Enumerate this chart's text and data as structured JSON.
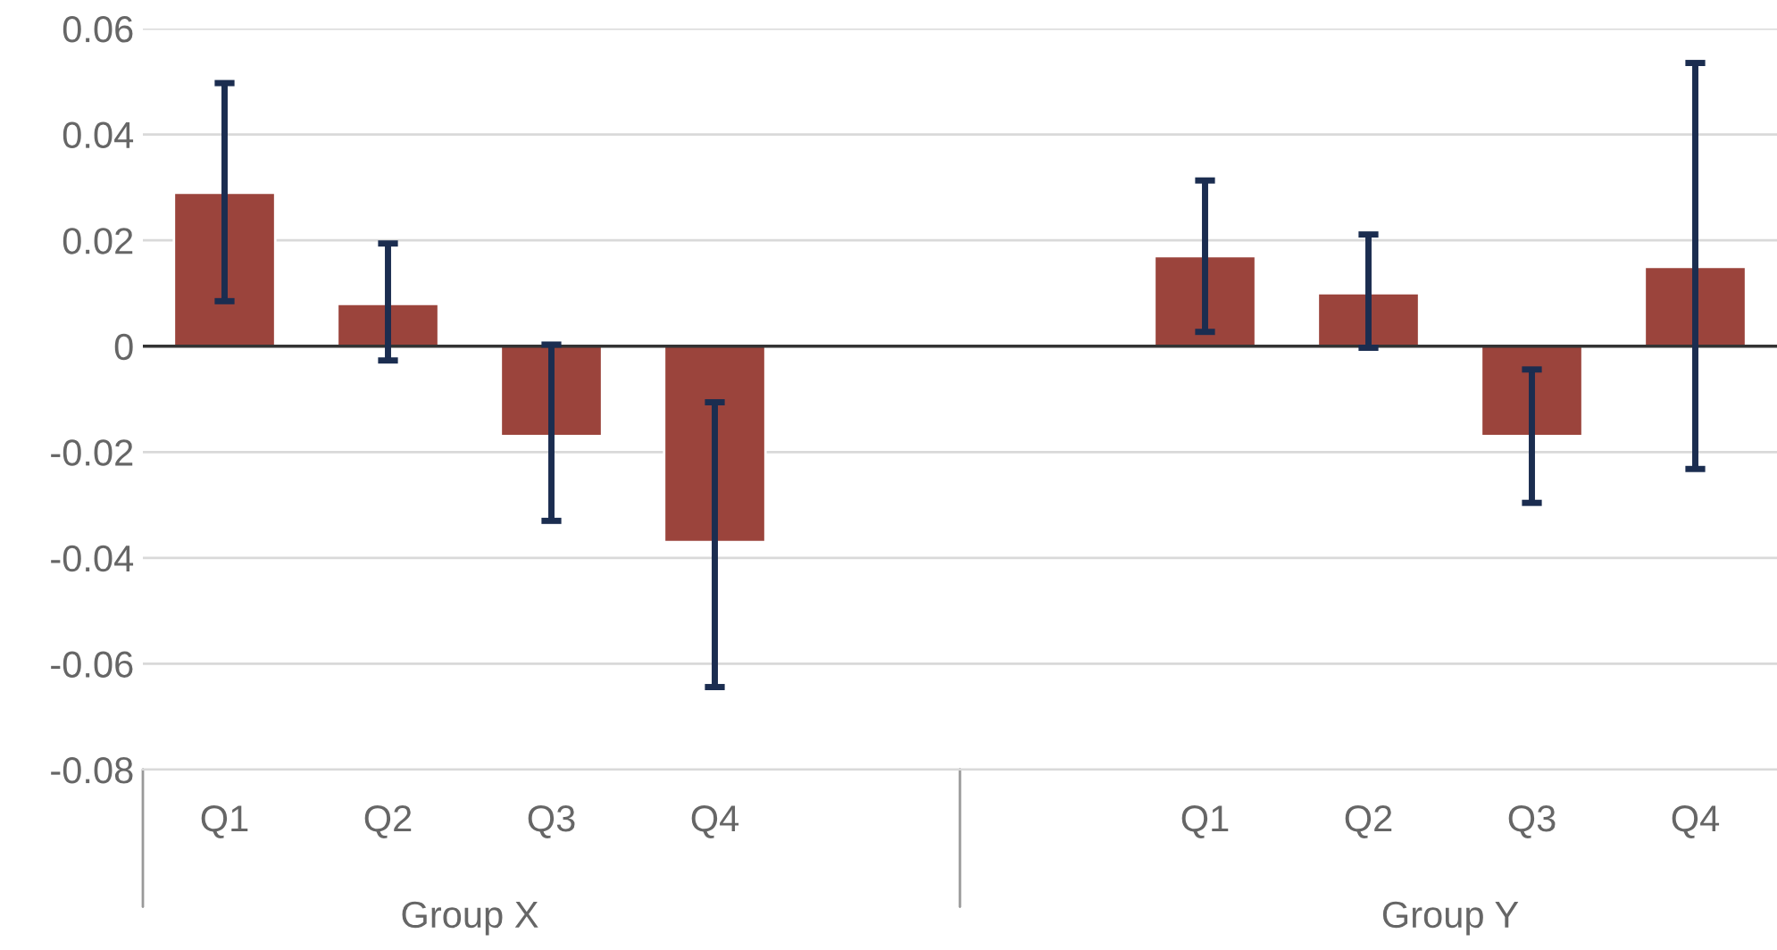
{
  "chart_data": {
    "type": "bar",
    "categories": [
      "Q1",
      "Q2",
      "Q3",
      "Q4",
      null,
      null,
      "Q1",
      "Q2",
      "Q3",
      "Q4"
    ],
    "values": [
      0.029,
      0.008,
      -0.017,
      -0.037,
      null,
      null,
      0.017,
      0.01,
      -0.017,
      0.015
    ],
    "errors": [
      [
        0.0085,
        0.0497
      ],
      [
        -0.0027,
        0.0194
      ],
      [
        -0.033,
        0.0003
      ],
      [
        -0.0644,
        -0.0106
      ],
      null,
      null,
      [
        0.0027,
        0.0313
      ],
      [
        -0.0003,
        0.0211
      ],
      [
        -0.0296,
        -0.0044
      ],
      [
        -0.0232,
        0.0535
      ]
    ],
    "color": "#9b443c",
    "annotations": [
      "Group X",
      "Group Y"
    ],
    "ylim": [
      -0.08,
      0.06
    ],
    "yticks": [
      -0.08,
      -0.06,
      -0.04,
      -0.02,
      {
        "value": 0,
        "label": "0"
      },
      0.02,
      0.04,
      0.06
    ],
    "grid": "y",
    "legend": false
  }
}
